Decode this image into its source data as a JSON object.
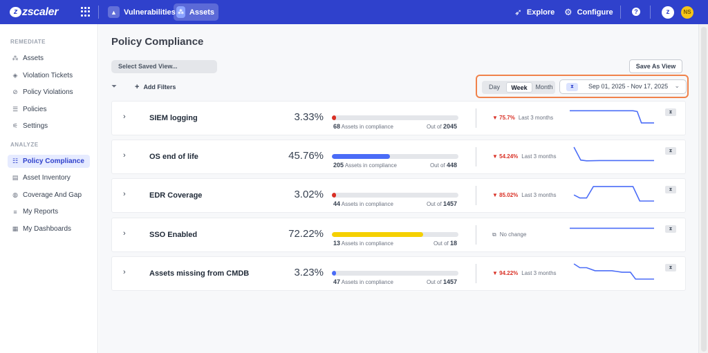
{
  "brand": {
    "name": "zscaler"
  },
  "topnav": {
    "tabs": [
      {
        "label": "Vulnerabilities",
        "icon": "warning-icon",
        "active": false
      },
      {
        "label": "Assets",
        "icon": "assets-icon",
        "active": true
      }
    ],
    "explore_label": "Explore",
    "configure_label": "Configure",
    "help_label": "?",
    "user_initials": "NS"
  },
  "sidebar": {
    "sections": [
      {
        "title": "REMEDIATE",
        "items": [
          {
            "label": "Assets",
            "icon": "nodes-icon"
          },
          {
            "label": "Violation Tickets",
            "icon": "ticket-icon"
          },
          {
            "label": "Policy Violations",
            "icon": "circle-slash-icon"
          },
          {
            "label": "Policies",
            "icon": "list-icon"
          },
          {
            "label": "Settings",
            "icon": "sliders-icon"
          }
        ]
      },
      {
        "title": "ANALYZE",
        "items": [
          {
            "label": "Policy Compliance",
            "icon": "compliance-icon",
            "active": true
          },
          {
            "label": "Asset Inventory",
            "icon": "inventory-icon"
          },
          {
            "label": "Coverage And Gap",
            "icon": "coverage-icon"
          },
          {
            "label": "My Reports",
            "icon": "reports-icon"
          },
          {
            "label": "My Dashboards",
            "icon": "dashboard-icon"
          }
        ]
      }
    ]
  },
  "page": {
    "title": "Policy Compliance",
    "saved_view_placeholder": "Select Saved View...",
    "save_as_view_label": "Save As View",
    "add_filters_label": "Add Filters",
    "period": {
      "options": [
        "Day",
        "Week",
        "Month"
      ],
      "selected": "Week"
    },
    "date_range": "Sep 01, 2025 - Nov 17, 2025",
    "in_compliance_label": "Assets in compliance",
    "out_of_label": "Out of"
  },
  "colors": {
    "accent": "#2f41cc",
    "range_highlight": "#f0824a",
    "down": "#d93025",
    "bar_red": "#d93025",
    "bar_blue": "#4a6cf7",
    "bar_yellow": "#f5d000",
    "spark": "#4a6cf7"
  },
  "policies": [
    {
      "name": "SIEM logging",
      "percent": "3.33%",
      "fraction": 0.0333,
      "bar_color": "#d93025",
      "in_compliance": "68",
      "out_of": "2045",
      "change": "75.7%",
      "direction": "down",
      "period_label": "Last 3 months",
      "trend": [
        0.85,
        0.85,
        0.85,
        0.85,
        0.85,
        0.85,
        0.85,
        0.85,
        0.85,
        0.85,
        0.8,
        0.05,
        0.05,
        0.05
      ],
      "trend_x": [
        0,
        0.1,
        0.2,
        0.3,
        0.4,
        0.5,
        0.6,
        0.65,
        0.7,
        0.75,
        0.8,
        0.85,
        0.95,
        1.0
      ]
    },
    {
      "name": "OS end of life",
      "percent": "45.76%",
      "fraction": 0.4576,
      "bar_color": "#4a6cf7",
      "in_compliance": "205",
      "out_of": "448",
      "change": "54.24%",
      "direction": "down",
      "period_label": "Last 3 months",
      "trend": [
        1.0,
        0.15,
        0.1,
        0.12,
        0.12,
        0.12,
        0.12
      ],
      "trend_x": [
        0.05,
        0.13,
        0.2,
        0.35,
        0.55,
        0.75,
        1.0
      ]
    },
    {
      "name": "EDR Coverage",
      "percent": "3.02%",
      "fraction": 0.0302,
      "bar_color": "#d93025",
      "in_compliance": "44",
      "out_of": "1457",
      "change": "85.02%",
      "direction": "down",
      "period_label": "Last 3 months",
      "trend": [
        0.4,
        0.2,
        0.2,
        0.95,
        0.95,
        0.95,
        0.95,
        0.0,
        0.0
      ],
      "trend_x": [
        0.05,
        0.12,
        0.2,
        0.28,
        0.45,
        0.6,
        0.75,
        0.83,
        1.0
      ]
    },
    {
      "name": "SSO Enabled",
      "percent": "72.22%",
      "fraction": 0.7222,
      "bar_color": "#f5d000",
      "in_compliance": "13",
      "out_of": "18",
      "change": "No change",
      "direction": "none",
      "period_label": "",
      "trend": [
        0.8,
        0.8
      ],
      "trend_x": [
        0.0,
        1.0
      ]
    },
    {
      "name": "Assets missing from CMDB",
      "percent": "3.23%",
      "fraction": 0.0323,
      "bar_color": "#4a6cf7",
      "in_compliance": "47",
      "out_of": "1457",
      "change": "94.22%",
      "direction": "down",
      "period_label": "Last 3 months",
      "trend": [
        1.0,
        0.75,
        0.75,
        0.55,
        0.55,
        0.45,
        0.45,
        0.0,
        0.0
      ],
      "trend_x": [
        0.05,
        0.12,
        0.2,
        0.3,
        0.5,
        0.62,
        0.72,
        0.78,
        1.0
      ]
    }
  ]
}
